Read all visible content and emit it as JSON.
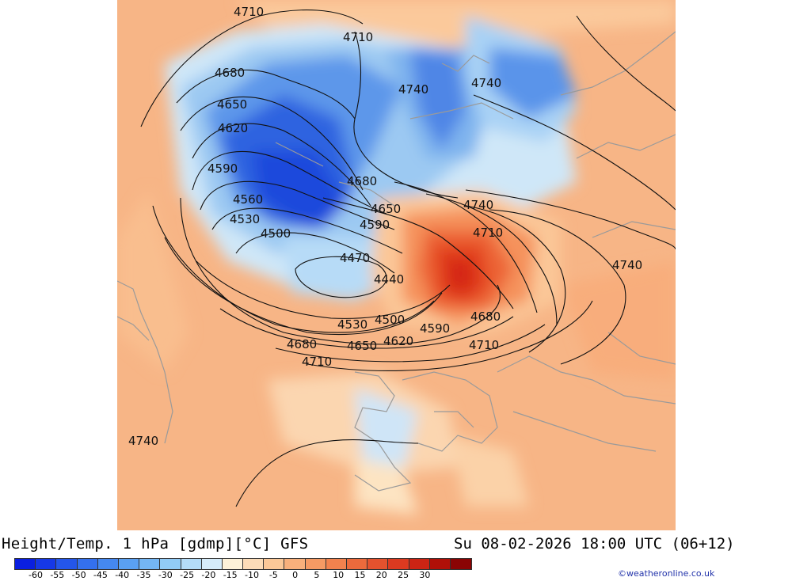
{
  "footer": {
    "title": "Height/Temp. 1 hPa [gdmp][°C] GFS",
    "datetime": "Su 08-02-2026 18:00 UTC (06+12)",
    "credit": "©weatheronline.co.uk"
  },
  "colorbar": {
    "colors": [
      "#0a1fe0",
      "#1638e6",
      "#2456ea",
      "#3470ee",
      "#4588f0",
      "#5aa0f2",
      "#74b6f4",
      "#92cbf6",
      "#b4dcf8",
      "#d6ecfa",
      "#fdf1d8",
      "#fcdcb8",
      "#fbc898",
      "#f8b07c",
      "#f59a64",
      "#f2824e",
      "#ec6a3c",
      "#e4522e",
      "#dc3a20",
      "#cc2414",
      "#b01008",
      "#8a0404"
    ],
    "tick_labels": [
      "-60",
      "-55",
      "-50",
      "-45",
      "-40",
      "-35",
      "-30",
      "-25",
      "-20",
      "-15",
      "-10",
      "-5",
      "0",
      "5",
      "10",
      "15",
      "20",
      "25",
      "30"
    ]
  },
  "contour_labels": [
    "4710",
    "4710",
    "4680",
    "4740",
    "4740",
    "4650",
    "4620",
    "4590",
    "4680",
    "4560",
    "4650",
    "4740",
    "4530",
    "4590",
    "4710",
    "4500",
    "4470",
    "4740",
    "4440",
    "4680",
    "4530",
    "4500",
    "4590",
    "4710",
    "4620",
    "4680",
    "4650",
    "4710",
    "4740"
  ]
}
